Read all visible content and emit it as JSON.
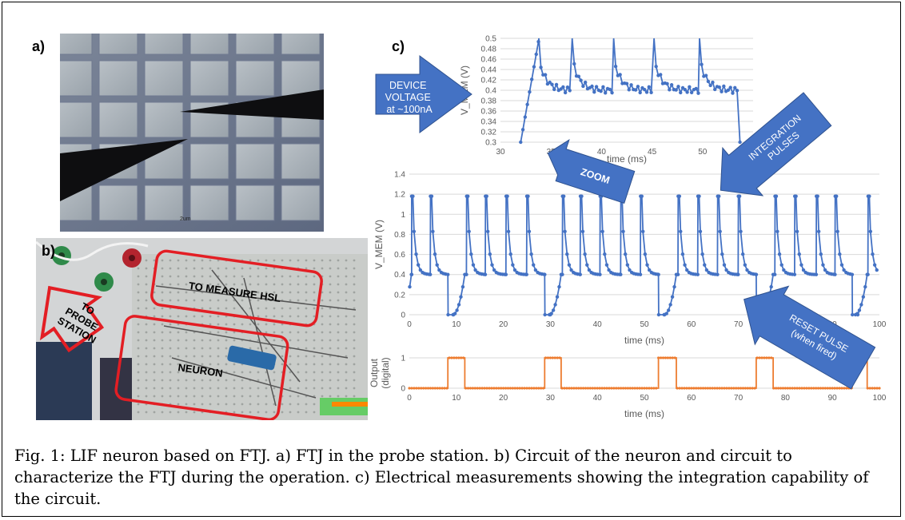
{
  "figure": {
    "panel_labels": {
      "a": "a)",
      "b": "b)",
      "c": "c)"
    },
    "photo_b_labels": {
      "to_probe_station": [
        "TO",
        "PROBE",
        "STATION"
      ],
      "to_measure_hsl": "TO MEASURE HSL",
      "neuron": "NEURON"
    },
    "photo_a_scale_label": "2um",
    "annotations": {
      "device_voltage": [
        "DEVICE",
        "VOLTAGE",
        "at ~100nA"
      ],
      "zoom": "ZOOM",
      "integration_pulses": [
        "INTEGRATION",
        "PULSES"
      ],
      "reset_pulse": [
        "RESET PULSE",
        "(when fired)"
      ]
    },
    "caption": "Fig. 1: LIF neuron based on FTJ. a) FTJ in the probe station. b) Circuit of the neuron and circuit to characterize the FTJ during the operation. c) Electrical measurements showing the integration capability of the circuit."
  },
  "colors": {
    "series_blue": "#4472c4",
    "series_orange": "#ed7d31",
    "annotation_red": "#e31e24",
    "arrow_blue": "#4472c4"
  },
  "chart_data": [
    {
      "id": "zoom",
      "type": "line",
      "xlabel": "time (ms)",
      "ylabel": "V_MEM (V)",
      "xlim": [
        30,
        55
      ],
      "ylim": [
        0.3,
        0.5
      ],
      "xticks": [
        30,
        35,
        40,
        45,
        50,
        55
      ],
      "yticks": [
        0.3,
        0.32,
        0.34,
        0.36,
        0.38,
        0.4,
        0.42,
        0.44,
        0.46,
        0.48,
        0.5
      ],
      "grid": true,
      "spike_times": [
        33.8,
        37.1,
        41.2,
        45.2,
        49.7
      ],
      "end_time": 53.7,
      "settle_level": 0.4
    },
    {
      "id": "vmem",
      "type": "line",
      "xlabel": "time (ms)",
      "ylabel": "V_MEM (V)",
      "xlim": [
        0,
        100
      ],
      "ylim": [
        0,
        1.4
      ],
      "xticks": [
        0,
        10,
        20,
        30,
        40,
        50,
        60,
        70,
        80,
        90,
        100
      ],
      "yticks": [
        0,
        0.2,
        0.4,
        0.6,
        0.8,
        1.0,
        1.2,
        1.4
      ],
      "grid": true,
      "spike_peak": 1.18,
      "rest_level": 0.4,
      "segments": [
        {
          "start": 0.5,
          "spikes": [
            0.5,
            4.5
          ],
          "reset": 8.2
        },
        {
          "start": 11.8,
          "spikes": [
            12.2,
            16.2,
            20.6,
            25.0
          ],
          "reset": 28.8
        },
        {
          "start": 32.3,
          "spikes": [
            32.6,
            36.4,
            40.6,
            45.0,
            49.2
          ],
          "reset": 53.0
        },
        {
          "start": 56.8,
          "spikes": [
            57.2,
            61.4,
            65.6,
            70.0
          ],
          "reset": 73.8
        },
        {
          "start": 77.4,
          "spikes": [
            77.8,
            82.0,
            86.6,
            90.6
          ],
          "reset": 94.2
        },
        {
          "start": 97.4,
          "spikes": [
            97.6
          ],
          "reset": null
        }
      ]
    },
    {
      "id": "output",
      "type": "line",
      "xlabel": "time (ms)",
      "ylabel": "Output (digital)",
      "xlim": [
        0,
        100
      ],
      "ylim": [
        0,
        1
      ],
      "xticks": [
        0,
        10,
        20,
        30,
        40,
        50,
        60,
        70,
        80,
        90,
        100
      ],
      "yticks": [
        0,
        1
      ],
      "grid": true,
      "pulses": [
        [
          8.2,
          11.8
        ],
        [
          28.8,
          32.3
        ],
        [
          53.0,
          56.8
        ],
        [
          73.8,
          77.4
        ],
        [
          94.2,
          97.4
        ]
      ]
    }
  ]
}
